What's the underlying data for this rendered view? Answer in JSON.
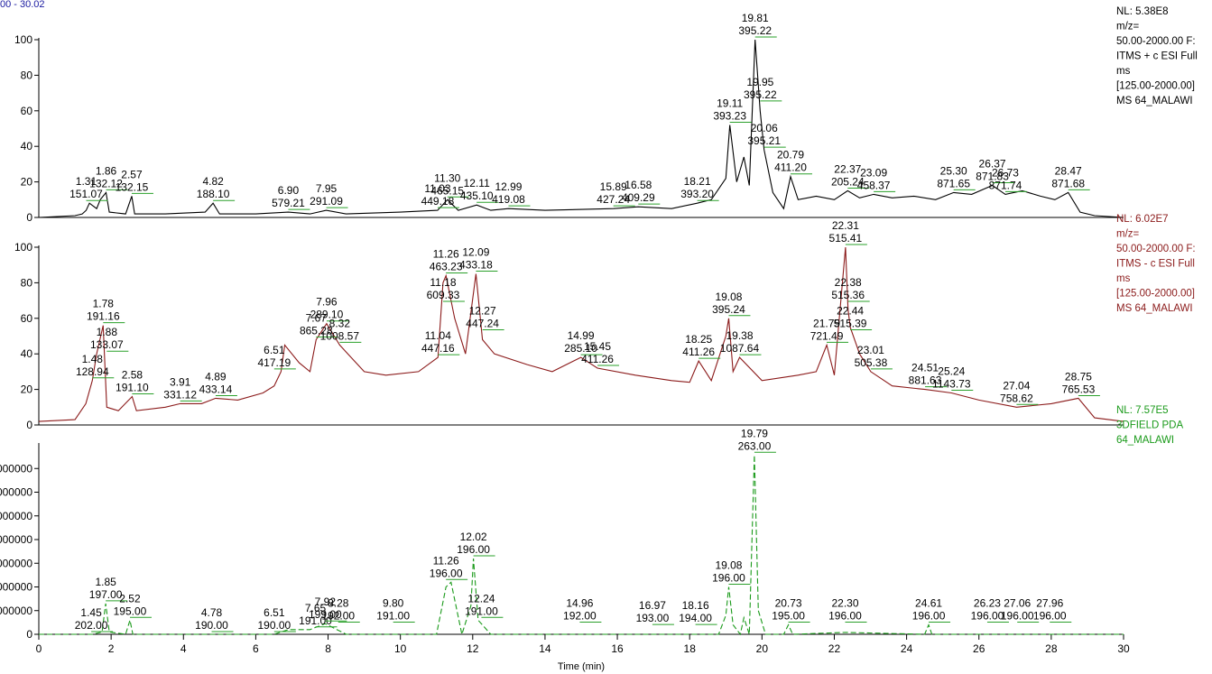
{
  "header": "00 - 30.02",
  "chart_data": [
    {
      "type": "line",
      "color": "#000000",
      "xlim": [
        0,
        30
      ],
      "ylim": [
        0,
        100
      ],
      "yticks": [
        0,
        20,
        40,
        60,
        80,
        100
      ],
      "info": [
        "NL: 5.38E8",
        "m/z=",
        "50.00-2000.00 F:",
        "ITMS + c ESI Full",
        "ms",
        "[125.00-2000.00]",
        "MS 64_MALAWI"
      ],
      "x": [
        0,
        1.0,
        1.2,
        1.31,
        1.4,
        1.6,
        1.7,
        1.86,
        1.95,
        2.4,
        2.57,
        2.65,
        3.5,
        4.6,
        4.82,
        5.0,
        6.0,
        6.9,
        7.5,
        7.95,
        8.5,
        10,
        11.03,
        11.3,
        11.6,
        12.11,
        12.5,
        12.99,
        14,
        15.89,
        16.58,
        17.5,
        18.21,
        18.6,
        19.0,
        19.11,
        19.3,
        19.5,
        19.65,
        19.81,
        19.95,
        20.06,
        20.3,
        20.6,
        20.79,
        21.0,
        21.5,
        22.0,
        22.37,
        22.7,
        23.09,
        23.6,
        24.2,
        24.8,
        25.3,
        25.8,
        26.37,
        26.73,
        27.2,
        27.7,
        28.1,
        28.47,
        28.8,
        29.2,
        30
      ],
      "values": [
        0,
        1,
        2,
        4,
        8,
        5,
        10,
        14,
        3,
        2,
        12,
        2,
        2,
        3,
        8,
        2,
        2,
        3,
        2,
        4,
        2,
        3,
        4,
        10,
        4,
        7,
        4,
        5,
        4,
        5,
        6,
        5,
        8,
        10,
        22,
        52,
        20,
        34,
        18,
        100,
        60,
        38,
        14,
        5,
        23,
        10,
        12,
        10,
        15,
        11,
        13,
        11,
        12,
        10,
        14,
        13,
        18,
        13,
        15,
        12,
        10,
        14,
        3,
        1,
        0
      ],
      "annotations": [
        {
          "x": 1.31,
          "y": 8,
          "labels": [
            "1.31",
            "151.07"
          ]
        },
        {
          "x": 1.86,
          "y": 14,
          "labels": [
            "1.86",
            "132.12"
          ]
        },
        {
          "x": 2.57,
          "y": 12,
          "labels": [
            "2.57",
            "132.15"
          ]
        },
        {
          "x": 4.82,
          "y": 8,
          "labels": [
            "4.82",
            "188.10"
          ]
        },
        {
          "x": 6.9,
          "y": 3,
          "labels": [
            "6.90",
            "579.21"
          ]
        },
        {
          "x": 7.95,
          "y": 4,
          "labels": [
            "7.95",
            "291.09"
          ]
        },
        {
          "x": 11.03,
          "y": 4,
          "labels": [
            "11.03",
            "449.18"
          ]
        },
        {
          "x": 11.3,
          "y": 10,
          "labels": [
            "11.30",
            "465.15"
          ]
        },
        {
          "x": 12.11,
          "y": 7,
          "labels": [
            "12.11",
            "435.10"
          ]
        },
        {
          "x": 12.99,
          "y": 5,
          "labels": [
            "12.99",
            "419.08"
          ]
        },
        {
          "x": 15.89,
          "y": 5,
          "labels": [
            "15.89",
            "427.24"
          ]
        },
        {
          "x": 16.58,
          "y": 6,
          "labels": [
            "16.58",
            "409.29"
          ]
        },
        {
          "x": 18.21,
          "y": 8,
          "labels": [
            "18.21",
            "393.20"
          ]
        },
        {
          "x": 19.11,
          "y": 52,
          "labels": [
            "19.11",
            "393.23"
          ]
        },
        {
          "x": 19.81,
          "y": 100,
          "labels": [
            "19.81",
            "395.22"
          ]
        },
        {
          "x": 19.95,
          "y": 64,
          "labels": [
            "19.95",
            "395.22"
          ]
        },
        {
          "x": 20.06,
          "y": 38,
          "labels": [
            "20.06",
            "395.21"
          ]
        },
        {
          "x": 20.79,
          "y": 23,
          "labels": [
            "20.79",
            "411.20"
          ]
        },
        {
          "x": 22.37,
          "y": 15,
          "labels": [
            "22.37",
            "205.24"
          ]
        },
        {
          "x": 23.09,
          "y": 13,
          "labels": [
            "23.09",
            "458.37"
          ]
        },
        {
          "x": 25.3,
          "y": 14,
          "labels": [
            "25.30",
            "871.65"
          ]
        },
        {
          "x": 26.37,
          "y": 18,
          "labels": [
            "26.37",
            "871.83"
          ]
        },
        {
          "x": 26.73,
          "y": 13,
          "labels": [
            "26.73",
            "871.74"
          ]
        },
        {
          "x": 28.47,
          "y": 14,
          "labels": [
            "28.47",
            "871.68"
          ]
        }
      ]
    },
    {
      "type": "line",
      "color": "#8b1a1a",
      "xlim": [
        0,
        30
      ],
      "ylim": [
        0,
        100
      ],
      "yticks": [
        0,
        20,
        40,
        60,
        80,
        100
      ],
      "info": [
        "NL: 6.02E7",
        "m/z=",
        "50.00-2000.00 F:",
        "ITMS - c ESI Full",
        "ms",
        "[125.00-2000.00]",
        "MS 64_MALAWI"
      ],
      "x": [
        0,
        1.0,
        1.3,
        1.48,
        1.6,
        1.78,
        1.88,
        2.2,
        2.58,
        2.7,
        3.5,
        3.91,
        4.5,
        4.89,
        5.5,
        6.2,
        6.51,
        6.7,
        6.8,
        7.2,
        7.5,
        7.67,
        7.96,
        8.32,
        9,
        9.6,
        10.5,
        11.04,
        11.18,
        11.26,
        11.5,
        11.8,
        12.09,
        12.27,
        12.6,
        13.5,
        14.2,
        14.99,
        15.45,
        16.5,
        17.5,
        18.0,
        18.25,
        18.6,
        19.0,
        19.08,
        19.2,
        19.38,
        20.0,
        21.0,
        21.5,
        21.79,
        22.0,
        22.31,
        22.38,
        22.44,
        22.7,
        23.01,
        23.6,
        24.51,
        25.24,
        26,
        27.04,
        28,
        28.75,
        29.2,
        30
      ],
      "values": [
        2,
        3,
        12,
        25,
        40,
        56,
        10,
        8,
        16,
        8,
        10,
        12,
        12,
        15,
        14,
        18,
        22,
        30,
        45,
        35,
        30,
        48,
        57,
        45,
        30,
        28,
        30,
        38,
        80,
        84,
        60,
        40,
        85,
        48,
        40,
        34,
        30,
        38,
        32,
        28,
        25,
        24,
        36,
        25,
        50,
        60,
        30,
        38,
        25,
        28,
        30,
        45,
        28,
        100,
        65,
        55,
        40,
        30,
        22,
        20,
        18,
        14,
        10,
        12,
        15,
        4,
        2
      ],
      "annotations": [
        {
          "x": 1.48,
          "y": 25,
          "labels": [
            "1.48",
            "128.94"
          ]
        },
        {
          "x": 1.78,
          "y": 56,
          "labels": [
            "1.78",
            "191.16"
          ]
        },
        {
          "x": 1.88,
          "y": 40,
          "labels": [
            "1.88",
            "133.07"
          ]
        },
        {
          "x": 2.58,
          "y": 16,
          "labels": [
            "2.58",
            "191.10"
          ]
        },
        {
          "x": 3.91,
          "y": 12,
          "labels": [
            "3.91",
            "331.12"
          ]
        },
        {
          "x": 4.89,
          "y": 15,
          "labels": [
            "4.89",
            "433.14"
          ]
        },
        {
          "x": 6.51,
          "y": 30,
          "labels": [
            "6.51",
            "417.19"
          ]
        },
        {
          "x": 7.67,
          "y": 48,
          "labels": [
            "7.67",
            "865.28"
          ]
        },
        {
          "x": 7.96,
          "y": 57,
          "labels": [
            "7.96",
            "289.10"
          ]
        },
        {
          "x": 8.32,
          "y": 45,
          "labels": [
            "8.32",
            "1008.57"
          ]
        },
        {
          "x": 11.04,
          "y": 38,
          "labels": [
            "11.04",
            "447.16"
          ]
        },
        {
          "x": 11.18,
          "y": 68,
          "labels": [
            "11.18",
            "609.33"
          ]
        },
        {
          "x": 11.26,
          "y": 84,
          "labels": [
            "11.26",
            "463.23"
          ]
        },
        {
          "x": 12.09,
          "y": 85,
          "labels": [
            "12.09",
            "433.18"
          ]
        },
        {
          "x": 12.27,
          "y": 52,
          "labels": [
            "12.27",
            "447.24"
          ]
        },
        {
          "x": 14.99,
          "y": 38,
          "labels": [
            "14.99",
            "285.10"
          ]
        },
        {
          "x": 15.45,
          "y": 32,
          "labels": [
            "15.45",
            "411.26"
          ]
        },
        {
          "x": 18.25,
          "y": 36,
          "labels": [
            "18.25",
            "411.26"
          ]
        },
        {
          "x": 19.08,
          "y": 60,
          "labels": [
            "19.08",
            "395.24"
          ]
        },
        {
          "x": 19.38,
          "y": 38,
          "labels": [
            "19.38",
            "1087.64"
          ]
        },
        {
          "x": 21.79,
          "y": 45,
          "labels": [
            "21.79",
            "721.49"
          ]
        },
        {
          "x": 22.31,
          "y": 100,
          "labels": [
            "22.31",
            "515.41"
          ]
        },
        {
          "x": 22.38,
          "y": 68,
          "labels": [
            "22.38",
            "515.36"
          ]
        },
        {
          "x": 22.44,
          "y": 52,
          "labels": [
            "22.44",
            "515.39"
          ]
        },
        {
          "x": 23.01,
          "y": 30,
          "labels": [
            "23.01",
            "505.38"
          ]
        },
        {
          "x": 24.51,
          "y": 20,
          "labels": [
            "24.51",
            "881.63"
          ]
        },
        {
          "x": 25.24,
          "y": 18,
          "labels": [
            "25.24",
            "1143.73"
          ]
        },
        {
          "x": 27.04,
          "y": 10,
          "labels": [
            "27.04",
            "758.62"
          ]
        },
        {
          "x": 28.75,
          "y": 15,
          "labels": [
            "28.75",
            "765.53"
          ]
        }
      ]
    },
    {
      "type": "line",
      "color": "#1a9a1a",
      "dashed": true,
      "xlim": [
        0,
        30
      ],
      "ylim": [
        0,
        800000
      ],
      "yticks": [
        0,
        {
          "value": 100000,
          "label": "000000"
        },
        {
          "value": 200000,
          "label": "000000"
        },
        {
          "value": 300000,
          "label": "000000"
        },
        {
          "value": 400000,
          "label": "000000"
        },
        {
          "value": 500000,
          "label": "000000"
        },
        {
          "value": 600000,
          "label": "000000"
        },
        {
          "value": 700000,
          "label": "000000"
        }
      ],
      "xticks": [
        0,
        2,
        4,
        6,
        8,
        10,
        12,
        14,
        16,
        18,
        20,
        22,
        24,
        26,
        28,
        30
      ],
      "xlabel": "Time (min)",
      "info": [
        "NL: 7.57E5",
        "3DFIELD  PDA",
        "64_MALAWI"
      ],
      "x": [
        0,
        1.0,
        1.5,
        1.75,
        1.85,
        1.95,
        2.4,
        2.52,
        2.6,
        3.5,
        4.78,
        5.5,
        6.51,
        6.9,
        7.5,
        7.92,
        8.5,
        10,
        11.0,
        11.26,
        11.4,
        11.7,
        11.95,
        12.02,
        12.15,
        12.5,
        14,
        18.8,
        19.0,
        19.08,
        19.2,
        19.4,
        19.5,
        19.65,
        19.79,
        19.9,
        20.1,
        20.6,
        20.73,
        20.85,
        22.3,
        24.5,
        24.61,
        24.7,
        30
      ],
      "values": [
        0,
        0,
        0,
        10000,
        130000,
        10000,
        0,
        60000,
        0,
        0,
        0,
        0,
        0,
        20000,
        20000,
        45000,
        0,
        0,
        0,
        200000,
        220000,
        0,
        120000,
        320000,
        60000,
        0,
        0,
        0,
        80000,
        200000,
        40000,
        0,
        70000,
        0,
        757000,
        100000,
        0,
        0,
        40000,
        0,
        8000,
        0,
        40000,
        0,
        0
      ],
      "annotations": [
        {
          "x": 1.45,
          "y": 0,
          "labels": [
            "1.45",
            "202.00"
          ]
        },
        {
          "x": 1.85,
          "y": 130000,
          "labels": [
            "1.85",
            "197.00"
          ]
        },
        {
          "x": 2.52,
          "y": 60000,
          "labels": [
            "2.52",
            "195.00"
          ]
        },
        {
          "x": 4.78,
          "y": 0,
          "labels": [
            "4.78",
            "190.00"
          ]
        },
        {
          "x": 6.51,
          "y": 0,
          "labels": [
            "6.51",
            "190.00"
          ]
        },
        {
          "x": 7.65,
          "y": 20000,
          "labels": [
            "7.65",
            "191.00"
          ]
        },
        {
          "x": 7.92,
          "y": 45000,
          "labels": [
            "7.92",
            "199.00"
          ]
        },
        {
          "x": 8.28,
          "y": 40000,
          "labels": [
            "8.28",
            "192.00"
          ]
        },
        {
          "x": 9.8,
          "y": 40000,
          "labels": [
            "9.80",
            "191.00"
          ]
        },
        {
          "x": 11.26,
          "y": 220000,
          "labels": [
            "11.26",
            "196.00"
          ]
        },
        {
          "x": 12.02,
          "y": 320000,
          "labels": [
            "12.02",
            "196.00"
          ]
        },
        {
          "x": 12.24,
          "y": 60000,
          "labels": [
            "12.24",
            "191.00"
          ]
        },
        {
          "x": 14.96,
          "y": 40000,
          "labels": [
            "14.96",
            "192.00"
          ]
        },
        {
          "x": 16.97,
          "y": 30000,
          "labels": [
            "16.97",
            "193.00"
          ]
        },
        {
          "x": 18.16,
          "y": 30000,
          "labels": [
            "18.16",
            "194.00"
          ]
        },
        {
          "x": 19.08,
          "y": 200000,
          "labels": [
            "19.08",
            "196.00"
          ]
        },
        {
          "x": 19.79,
          "y": 757000,
          "labels": [
            "19.79",
            "263.00"
          ]
        },
        {
          "x": 20.73,
          "y": 40000,
          "labels": [
            "20.73",
            "195.00"
          ]
        },
        {
          "x": 22.3,
          "y": 40000,
          "labels": [
            "22.30",
            "196.00"
          ]
        },
        {
          "x": 24.61,
          "y": 40000,
          "labels": [
            "24.61",
            "196.00"
          ]
        },
        {
          "x": 26.23,
          "y": 40000,
          "labels": [
            "26.23",
            "196.00"
          ]
        },
        {
          "x": 27.06,
          "y": 40000,
          "labels": [
            "27.06",
            "196.00"
          ]
        },
        {
          "x": 27.96,
          "y": 40000,
          "labels": [
            "27.96",
            "196.00"
          ]
        }
      ]
    }
  ]
}
